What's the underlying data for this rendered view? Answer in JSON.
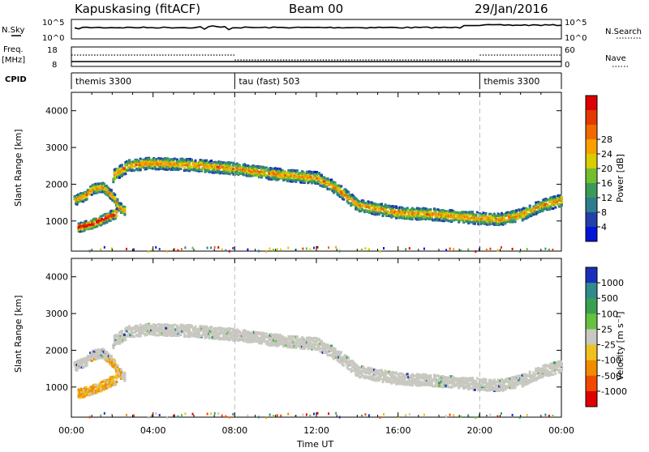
{
  "header": {
    "station": "Kapuskasing (fitACF)",
    "beam": "Beam 00",
    "date": "29/Jan/2016"
  },
  "strip_labels": {
    "nsky": "N.Sky",
    "freq_top": "Freq.",
    "freq_unit": "[MHz]",
    "cpid": "CPID",
    "nsearch": "N.Search",
    "nave": "Nave"
  },
  "strip_ticks": {
    "noise_left_top": "10^5",
    "noise_left_bottom": "10^0",
    "noise_right_top": "10^5",
    "noise_right_bottom": "10^0",
    "freq_left_top": "18",
    "freq_left_bottom": "8",
    "nave_right_top": "60",
    "nave_right_bottom": "0"
  },
  "cpid_segments": [
    {
      "label": "themis 3300",
      "start_hour": 0
    },
    {
      "label": "tau (fast) 503",
      "start_hour": 8
    },
    {
      "label": "themis 3300",
      "start_hour": 20
    }
  ],
  "axes": {
    "ylabel": "Slant Range [km]",
    "xlabel": "Time UT",
    "x_ticks": [
      "00:00",
      "04:00",
      "08:00",
      "12:00",
      "16:00",
      "20:00",
      "00:00"
    ],
    "y_ticks": [
      "1000",
      "2000",
      "3000",
      "4000"
    ],
    "xlim_hours": [
      0,
      24
    ],
    "ylim_km": [
      180,
      4500
    ]
  },
  "colorbars": {
    "power": {
      "label": "Power [dB]",
      "ticks": [
        "4",
        "8",
        "12",
        "16",
        "20",
        "24",
        "28"
      ],
      "colors": [
        "#0015d6",
        "#233fa8",
        "#2f7d8e",
        "#3a9a5a",
        "#6fbf2e",
        "#d9cc00",
        "#f7a000",
        "#f06a00",
        "#e23a00",
        "#dd0000"
      ]
    },
    "velocity": {
      "label": "Velocity [m s⁻¹]",
      "ticks": [
        "1000",
        "500",
        "100",
        "25",
        "-25",
        "-100",
        "-500",
        "-1000"
      ],
      "colors": [
        "#1a2fb8",
        "#2e8c8c",
        "#3aa050",
        "#68c040",
        "#c8c8c0",
        "#f0c020",
        "#f08c00",
        "#f04a00",
        "#e00000"
      ]
    }
  },
  "chart_data": {
    "type": "heatmap",
    "title": "Kapuskasing (fitACF) Beam 00 29/Jan/2016",
    "xlabel": "Time UT",
    "ylabel": "Slant Range [km]",
    "x_unit": "hours UT",
    "mode_changes_hours": [
      8,
      20
    ],
    "scatter_bands": [
      {
        "name": "lower band",
        "points": [
          [
            0.1,
            1580
          ],
          [
            0.6,
            1700
          ],
          [
            1.0,
            1900
          ],
          [
            1.5,
            1950
          ],
          [
            2.0,
            1700
          ],
          [
            2.3,
            1400
          ],
          [
            2.6,
            1300
          ]
        ]
      },
      {
        "name": "upper band",
        "points": [
          [
            2.0,
            2250
          ],
          [
            2.8,
            2550
          ],
          [
            4.0,
            2600
          ],
          [
            6.0,
            2550
          ],
          [
            8.0,
            2450
          ],
          [
            10.0,
            2300
          ],
          [
            12.0,
            2200
          ],
          [
            13.0,
            1900
          ],
          [
            14.0,
            1450
          ],
          [
            16.0,
            1250
          ],
          [
            18.0,
            1200
          ],
          [
            20.0,
            1100
          ],
          [
            21.0,
            1080
          ],
          [
            22.0,
            1200
          ],
          [
            23.0,
            1450
          ],
          [
            24.0,
            1600
          ]
        ]
      },
      {
        "name": "near range",
        "points": [
          [
            0.3,
            850
          ],
          [
            1.0,
            950
          ],
          [
            1.6,
            1100
          ],
          [
            2.2,
            1250
          ]
        ]
      }
    ],
    "power_range_db": [
      0,
      30
    ],
    "velocity_range_ms": [
      -1000,
      1000
    ]
  }
}
